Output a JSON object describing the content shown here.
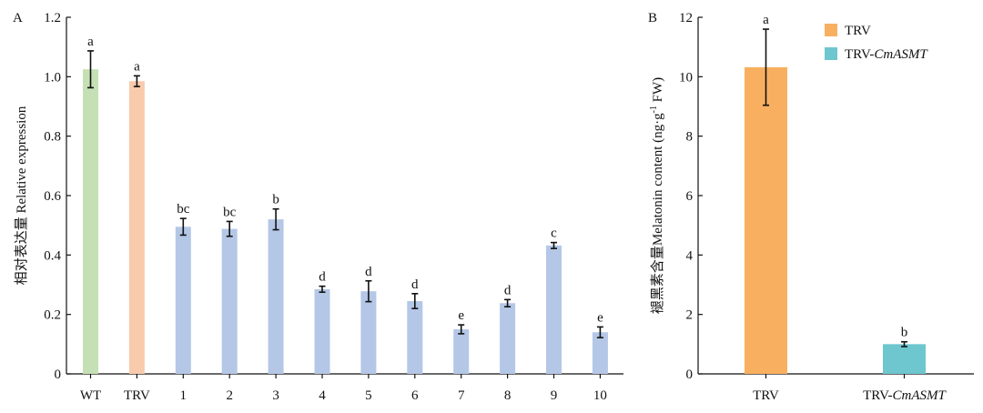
{
  "chart_data": [
    {
      "panel": "A",
      "type": "bar",
      "ylabel": "相对表达量 Relative expression",
      "xlabel": "",
      "ylim": [
        0,
        1.2
      ],
      "yticks": [
        "0",
        "0.2",
        "0.4",
        "0.6",
        "0.8",
        "1.0",
        "1.2"
      ],
      "ytick_values": [
        0,
        0.2,
        0.4,
        0.6,
        0.8,
        1.0,
        1.2
      ],
      "categories": [
        "WT",
        "TRV",
        "1",
        "2",
        "3",
        "4",
        "5",
        "6",
        "7",
        "8",
        "9",
        "10"
      ],
      "values": [
        1.025,
        0.985,
        0.495,
        0.488,
        0.52,
        0.285,
        0.278,
        0.245,
        0.15,
        0.238,
        0.432,
        0.14
      ],
      "errors": [
        0.062,
        0.018,
        0.028,
        0.025,
        0.035,
        0.01,
        0.035,
        0.025,
        0.015,
        0.012,
        0.01,
        0.018
      ],
      "significance": [
        "a",
        "a",
        "bc",
        "bc",
        "b",
        "d",
        "d",
        "d",
        "e",
        "d",
        "c",
        "e"
      ],
      "colors": [
        "#c5e0b4",
        "#f8cbad",
        "#b4c7e7",
        "#b4c7e7",
        "#b4c7e7",
        "#b4c7e7",
        "#b4c7e7",
        "#b4c7e7",
        "#b4c7e7",
        "#b4c7e7",
        "#b4c7e7",
        "#b4c7e7"
      ],
      "grid": false
    },
    {
      "panel": "B",
      "type": "bar",
      "ylabel": "褪黑素含量Melatonin content (ng·g",
      "ylabel_sup": "-1",
      "ylabel_tail": " FW)",
      "xlabel": "",
      "ylim": [
        0,
        12
      ],
      "yticks": [
        "0",
        "2",
        "4",
        "6",
        "8",
        "10",
        "12"
      ],
      "ytick_values": [
        0,
        2,
        4,
        6,
        8,
        10,
        12
      ],
      "categories": [
        "TRV",
        "TRV-CmASMT"
      ],
      "category_parts": [
        [
          "TRV",
          ""
        ],
        [
          "TRV-",
          "CmASMT"
        ]
      ],
      "values": [
        10.32,
        1.0
      ],
      "errors": [
        1.28,
        0.08
      ],
      "significance": [
        "a",
        "b"
      ],
      "colors": [
        "#f8b060",
        "#6ec6cf"
      ],
      "legend": [
        {
          "prefix": "TRV",
          "italic": "",
          "color": "#f8b060"
        },
        {
          "prefix": "TRV-",
          "italic": "CmASMT",
          "color": "#6ec6cf"
        }
      ],
      "legend_position": "top-right",
      "grid": false
    }
  ]
}
